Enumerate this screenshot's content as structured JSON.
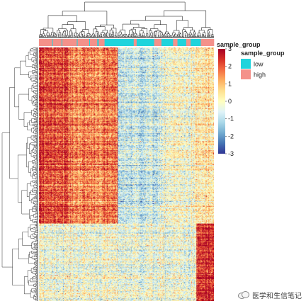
{
  "chart_data": {
    "type": "heatmap",
    "rows": 360,
    "columns": 240,
    "value_range": [
      -3,
      3
    ],
    "colorbar": {
      "ticks": [
        3,
        2,
        1,
        0,
        -1,
        -2,
        -3
      ],
      "tick_labels": [
        "3",
        "2",
        "1",
        "0",
        "-1",
        "-2",
        "-3"
      ],
      "colors": [
        "#313695",
        "#4575b4",
        "#74add1",
        "#abd9e9",
        "#e0f3f8",
        "#ffffbf",
        "#fee090",
        "#fdae61",
        "#f46d43",
        "#d73027",
        "#a50026"
      ]
    },
    "annotation": {
      "title": "sample_group",
      "legend_title": "sample_group",
      "groups": [
        {
          "label": "low",
          "color": "#1fd4dc"
        },
        {
          "label": "high",
          "color": "#f4918a"
        }
      ],
      "column_pattern": [
        {
          "group": "high",
          "count": 18
        },
        {
          "group": "low",
          "count": 1
        },
        {
          "group": "high",
          "count": 12
        },
        {
          "group": "low",
          "count": 1
        },
        {
          "group": "high",
          "count": 20
        },
        {
          "group": "low",
          "count": 1
        },
        {
          "group": "high",
          "count": 16
        },
        {
          "group": "low",
          "count": 1
        },
        {
          "group": "high",
          "count": 10
        },
        {
          "group": "low",
          "count": 2
        },
        {
          "group": "high",
          "count": 8
        },
        {
          "group": "low",
          "count": 40
        },
        {
          "group": "high",
          "count": 4
        },
        {
          "group": "low",
          "count": 24
        },
        {
          "group": "high",
          "count": 10
        },
        {
          "group": "low",
          "count": 16
        },
        {
          "group": "high",
          "count": 6
        },
        {
          "group": "low",
          "count": 12
        },
        {
          "group": "high",
          "count": 6
        },
        {
          "group": "low",
          "count": 14
        },
        {
          "group": "high",
          "count": 18
        }
      ]
    },
    "blocks": {
      "row_clusters": [
        {
          "label": "upper",
          "rows": 250
        },
        {
          "label": "lower",
          "rows": 110
        }
      ],
      "column_clusters": [
        {
          "label": "left",
          "columns": 108
        },
        {
          "label": "middle",
          "columns": 108
        },
        {
          "label": "right",
          "columns": 24
        }
      ],
      "typical_values": [
        [
          1.8,
          -0.8,
          0.3
        ],
        [
          -0.2,
          -0.3,
          2.4
        ]
      ]
    },
    "row_dendrogram": true,
    "column_dendrogram": true
  },
  "watermark": {
    "text": "医学和生信笔记",
    "icon": "chat-bubbles-icon"
  }
}
